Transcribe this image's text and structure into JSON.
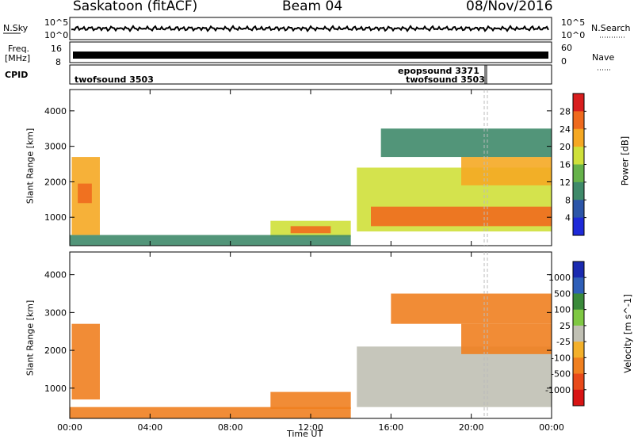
{
  "header": {
    "station": "Saskatoon (fitACF)",
    "beam": "Beam 04",
    "date": "08/Nov/2016"
  },
  "strips": {
    "nsky_label": "N.Sky",
    "nsearch_label": "N.Search",
    "sky_ticks": [
      "10^5",
      "10^0"
    ],
    "freq_label": "Freq.",
    "freq_unit": "[MHz]",
    "freq_ticks": [
      "16",
      "8"
    ],
    "nave_label": "Nave",
    "nave_ticks": [
      "60",
      "0"
    ],
    "cpid_label": "CPID",
    "cpid_entries": [
      "twofsound 3503",
      "epopsound 3371",
      "twofsound 3503"
    ]
  },
  "colors": {
    "power": [
      "#1e2ad8",
      "#2c55a8",
      "#3f8a6a",
      "#66b24a",
      "#cfe03a",
      "#f5a823",
      "#ef6a1e",
      "#d81e1e"
    ],
    "velocity": [
      "#1a2ab0",
      "#2f5fb8",
      "#3a8a3a",
      "#7fc843",
      "#c0c0b4",
      "#f3b02a",
      "#f08020",
      "#e84a1a",
      "#d81414"
    ]
  },
  "chart_data": [
    {
      "type": "heatmap",
      "title": "",
      "xlabel": "Time UT",
      "ylabel": "Slant Range [km]",
      "x_ticks": [
        "00:00",
        "04:00",
        "08:00",
        "12:00",
        "16:00",
        "20:00",
        "00:00"
      ],
      "y_ticks": [
        "1000",
        "2000",
        "3000",
        "4000"
      ],
      "ylim": [
        200,
        4600
      ],
      "colorbar": {
        "label": "Power [dB]",
        "ticks": [
          "4",
          "8",
          "12",
          "16",
          "20",
          "24",
          "28"
        ],
        "range": [
          0,
          32
        ]
      },
      "regions": [
        {
          "t_start": 0.1,
          "t_end": 1.5,
          "r_start": 500,
          "r_end": 2700,
          "level": 20
        },
        {
          "t_start": 0.4,
          "t_end": 1.1,
          "r_start": 1400,
          "r_end": 1950,
          "level": 27
        },
        {
          "t_start": 10.0,
          "t_end": 14.0,
          "r_start": 450,
          "r_end": 900,
          "level": 16
        },
        {
          "t_start": 11.0,
          "t_end": 13.0,
          "r_start": 550,
          "r_end": 750,
          "level": 27
        },
        {
          "t_start": 14.3,
          "t_end": 24.0,
          "r_start": 600,
          "r_end": 2400,
          "level": 16
        },
        {
          "t_start": 15.0,
          "t_end": 24.0,
          "r_start": 750,
          "r_end": 1300,
          "level": 25
        },
        {
          "t_start": 19.5,
          "t_end": 24.0,
          "r_start": 1900,
          "r_end": 2700,
          "level": 20
        },
        {
          "t_start": 15.5,
          "t_end": 24.0,
          "r_start": 2700,
          "r_end": 3500,
          "level": 10
        },
        {
          "t_start": 0.0,
          "t_end": 14.0,
          "r_start": 200,
          "r_end": 500,
          "level": 8
        }
      ]
    },
    {
      "type": "heatmap",
      "title": "",
      "xlabel": "Time UT",
      "ylabel": "Slant Range [km]",
      "x_ticks": [
        "00:00",
        "04:00",
        "08:00",
        "12:00",
        "16:00",
        "20:00",
        "00:00"
      ],
      "y_ticks": [
        "1000",
        "2000",
        "3000",
        "4000"
      ],
      "ylim": [
        200,
        4600
      ],
      "colorbar": {
        "label": "Velocity [m s^-1]",
        "ticks": [
          "1000",
          "500",
          "100",
          "25",
          "-25",
          "-100",
          "-500",
          "-1000"
        ],
        "range": [
          -1200,
          1200
        ]
      },
      "regions": [
        {
          "t_start": 0.1,
          "t_end": 1.5,
          "r_start": 700,
          "r_end": 2700,
          "level": -150
        },
        {
          "t_start": 10.0,
          "t_end": 14.0,
          "r_start": 450,
          "r_end": 900,
          "level": -200
        },
        {
          "t_start": 14.3,
          "t_end": 24.0,
          "r_start": 500,
          "r_end": 2100,
          "level": 0
        },
        {
          "t_start": 19.5,
          "t_end": 24.0,
          "r_start": 1900,
          "r_end": 2700,
          "level": -300
        },
        {
          "t_start": 16.0,
          "t_end": 24.0,
          "r_start": 2700,
          "r_end": 3500,
          "level": -250
        },
        {
          "t_start": 0.0,
          "t_end": 14.0,
          "r_start": 200,
          "r_end": 500,
          "level": -120
        }
      ]
    }
  ]
}
